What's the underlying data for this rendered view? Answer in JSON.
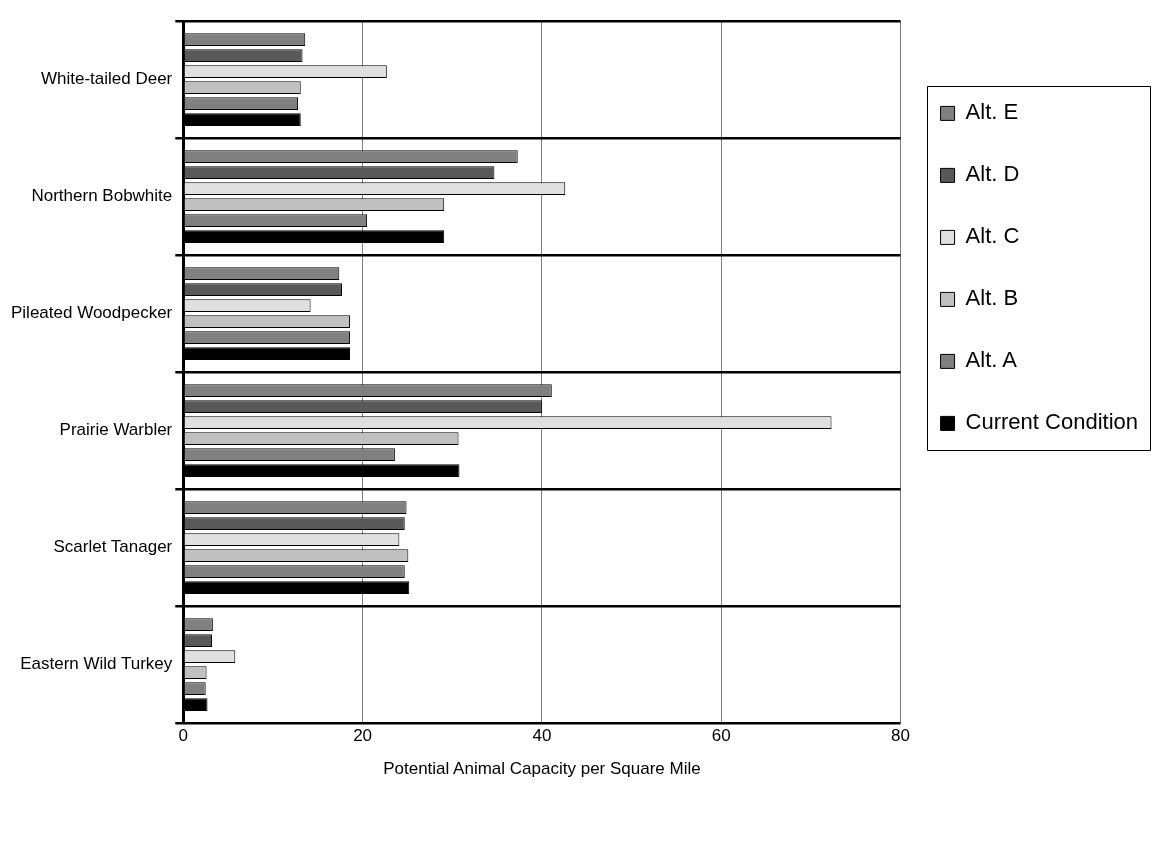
{
  "chart_data": {
    "type": "bar",
    "orientation": "horizontal",
    "xlabel": "Potential Animal Capacity per Square Mile",
    "categories": [
      "White-tailed Deer",
      "Northern Bobwhite",
      "Pileated Woodpecker",
      "Prairie Warbler",
      "Scarlet Tanager",
      "Eastern Wild Turkey"
    ],
    "series": [
      {
        "name": "Alt. E",
        "color": "#808080",
        "values": [
          13.6,
          37.3,
          17.4,
          41.1,
          24.9,
          3.3
        ]
      },
      {
        "name": "Alt. D",
        "color": "#595959",
        "values": [
          13.3,
          34.7,
          17.7,
          40.0,
          24.7,
          3.2
        ]
      },
      {
        "name": "Alt. C",
        "color": "#e0e0e0",
        "values": [
          22.7,
          42.6,
          14.2,
          72.3,
          24.1,
          5.8
        ]
      },
      {
        "name": "Alt. B",
        "color": "#c0c0c0",
        "values": [
          13.1,
          29.1,
          18.6,
          30.7,
          25.1,
          2.6
        ]
      },
      {
        "name": "Alt. A",
        "color": "#808080",
        "values": [
          12.8,
          20.5,
          18.6,
          23.6,
          24.7,
          2.5
        ]
      },
      {
        "name": "Current Condition",
        "color": "#000000",
        "values": [
          13.1,
          29.1,
          18.6,
          30.8,
          25.2,
          2.7
        ]
      }
    ],
    "xlim": [
      0,
      80
    ],
    "xticks": [
      0,
      20,
      40,
      60,
      80
    ],
    "grid": true,
    "legend": "right"
  }
}
